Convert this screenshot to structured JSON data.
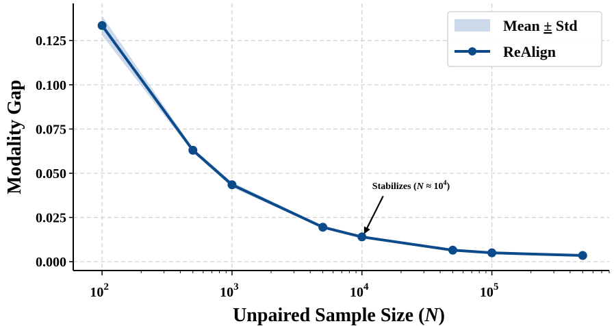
{
  "chart_data": {
    "type": "line",
    "title": "",
    "xlabel": "Unpaired Sample Size (N)",
    "xlabel_prefix": "Unpaired Sample Size (",
    "xlabel_var": "N",
    "xlabel_suffix": ")",
    "ylabel": "Modality Gap",
    "xscale": "log",
    "xlim": [
      60,
      800000
    ],
    "ylim": [
      -0.005,
      0.146
    ],
    "xticks": [
      {
        "value": 100,
        "base": "10",
        "exp": "2"
      },
      {
        "value": 1000,
        "base": "10",
        "exp": "3"
      },
      {
        "value": 10000,
        "base": "10",
        "exp": "4"
      },
      {
        "value": 100000,
        "base": "10",
        "exp": "5"
      }
    ],
    "yticks": [
      {
        "value": 0.0,
        "label": "0.000"
      },
      {
        "value": 0.025,
        "label": "0.025"
      },
      {
        "value": 0.05,
        "label": "0.050"
      },
      {
        "value": 0.075,
        "label": "0.075"
      },
      {
        "value": 0.1,
        "label": "0.100"
      },
      {
        "value": 0.125,
        "label": "0.125"
      }
    ],
    "grid": true,
    "legend_position": "top-right",
    "series": [
      {
        "name": "ReAlign",
        "color": "#0b4a8b",
        "x": [
          100,
          500,
          1000,
          5000,
          10000,
          50000,
          100000,
          500000
        ],
        "values": [
          0.1335,
          0.063,
          0.0435,
          0.0195,
          0.014,
          0.0065,
          0.005,
          0.0035
        ],
        "std": [
          0.0055,
          0.0012,
          0.0015,
          0.0006,
          0.0005,
          0.0003,
          0.0002,
          0.0002
        ]
      }
    ],
    "band": {
      "name": "Mean ± Std",
      "label_prefix": "Mean ",
      "label_pm": "±",
      "label_suffix": " Std",
      "color": "#a9c0dc"
    },
    "annotations": [
      {
        "prefix": "Stabilizes (",
        "var": "N",
        "approx": " ≈ 10",
        "exp": "4",
        "suffix": ")",
        "x": 10000,
        "y": 0.014,
        "text_x": 12000,
        "text_y": 0.041
      }
    ]
  }
}
